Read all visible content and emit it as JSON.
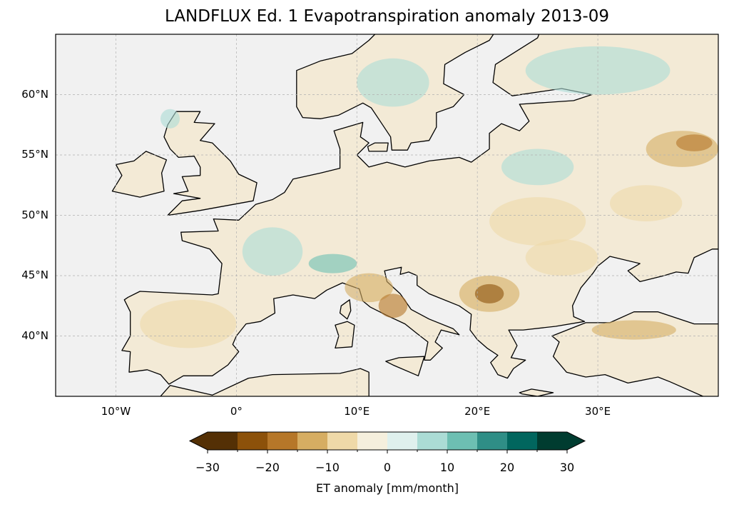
{
  "chart_data": {
    "type": "heatmap",
    "title": "LANDFLUX Ed. 1 Evapotranspiration anomaly 2013-09",
    "extent": {
      "lon": [
        -15,
        40
      ],
      "lat": [
        35,
        65
      ]
    },
    "x_ticks": [
      {
        "value": -10,
        "label": "10°W"
      },
      {
        "value": 0,
        "label": "0°"
      },
      {
        "value": 10,
        "label": "10°E"
      },
      {
        "value": 20,
        "label": "20°E"
      },
      {
        "value": 30,
        "label": "30°E"
      }
    ],
    "y_ticks": [
      {
        "value": 60,
        "label": "60°N"
      },
      {
        "value": 55,
        "label": "55°N"
      },
      {
        "value": 50,
        "label": "50°N"
      },
      {
        "value": 45,
        "label": "45°N"
      },
      {
        "value": 40,
        "label": "40°N"
      }
    ],
    "grid": true,
    "colorbar": {
      "label": "ET anomaly [mm/month]",
      "levels": [
        -30,
        -25,
        -20,
        -15,
        -10,
        -5,
        0,
        5,
        10,
        15,
        20,
        25,
        30
      ],
      "tick_labels": [
        "−30",
        "−20",
        "−10",
        "0",
        "10",
        "20",
        "30"
      ],
      "tick_values": [
        -30,
        -20,
        -10,
        0,
        10,
        20,
        30
      ],
      "colors": [
        "#543005",
        "#8c510a",
        "#b67729",
        "#d6ad62",
        "#efd9a8",
        "#f5efdd",
        "#dff0ed",
        "#abdcd5",
        "#6dbfb2",
        "#2f8e86",
        "#01665e",
        "#003c30"
      ],
      "extend": "both",
      "under_color": "#543005",
      "over_color": "#003c30"
    },
    "colors": {
      "ocean": "#f1f1f1",
      "coast": "#000000",
      "grid": "#b0b0b0"
    }
  }
}
